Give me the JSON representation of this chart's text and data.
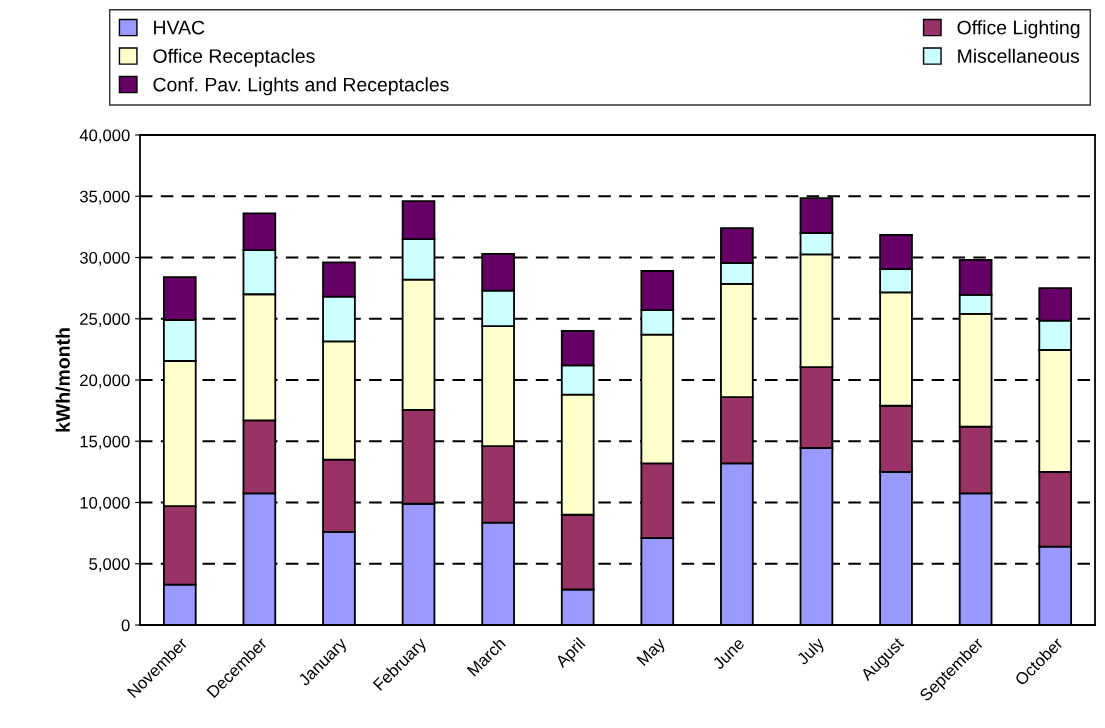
{
  "chart_data": {
    "type": "bar",
    "stacked": true,
    "ylabel": "kWh/month",
    "categories": [
      "November",
      "December",
      "January",
      "February",
      "March",
      "April",
      "May",
      "June",
      "July",
      "August",
      "September",
      "October"
    ],
    "series": [
      {
        "name": "HVAC",
        "color": "#9999ff",
        "values": [
          3300,
          10750,
          7600,
          9900,
          8350,
          2900,
          7100,
          13200,
          14450,
          12500,
          10750,
          6400
        ]
      },
      {
        "name": "Office Lighting",
        "color": "#993366",
        "values": [
          6400,
          5950,
          5900,
          7650,
          6250,
          6100,
          6100,
          5400,
          6600,
          5400,
          5450,
          6100
        ]
      },
      {
        "name": "Office Receptacles",
        "color": "#ffffcc",
        "values": [
          11850,
          10300,
          9650,
          10650,
          9800,
          9800,
          10500,
          9250,
          9200,
          9250,
          9200,
          9950
        ]
      },
      {
        "name": "Miscellaneous",
        "color": "#ccffff",
        "values": [
          3350,
          3600,
          3650,
          3300,
          2900,
          2400,
          2000,
          1700,
          1750,
          1900,
          1550,
          2400
        ]
      },
      {
        "name": "Conf. Pav. Lights and Receptacles",
        "color": "#660066",
        "values": [
          3500,
          3000,
          2800,
          3100,
          3000,
          2800,
          3200,
          2850,
          2850,
          2800,
          2850,
          2650
        ]
      }
    ],
    "ylim": [
      0,
      40000
    ],
    "yticks": [
      {
        "value": 0,
        "label": "0"
      },
      {
        "value": 5000,
        "label": "5,000"
      },
      {
        "value": 10000,
        "label": "10,000"
      },
      {
        "value": 15000,
        "label": "15,000"
      },
      {
        "value": 20000,
        "label": "20,000"
      },
      {
        "value": 25000,
        "label": "25,000"
      },
      {
        "value": 30000,
        "label": "30,000"
      },
      {
        "value": 35000,
        "label": "35,000"
      },
      {
        "value": 40000,
        "label": "40,000"
      }
    ],
    "grid": "y",
    "legend": "top"
  }
}
